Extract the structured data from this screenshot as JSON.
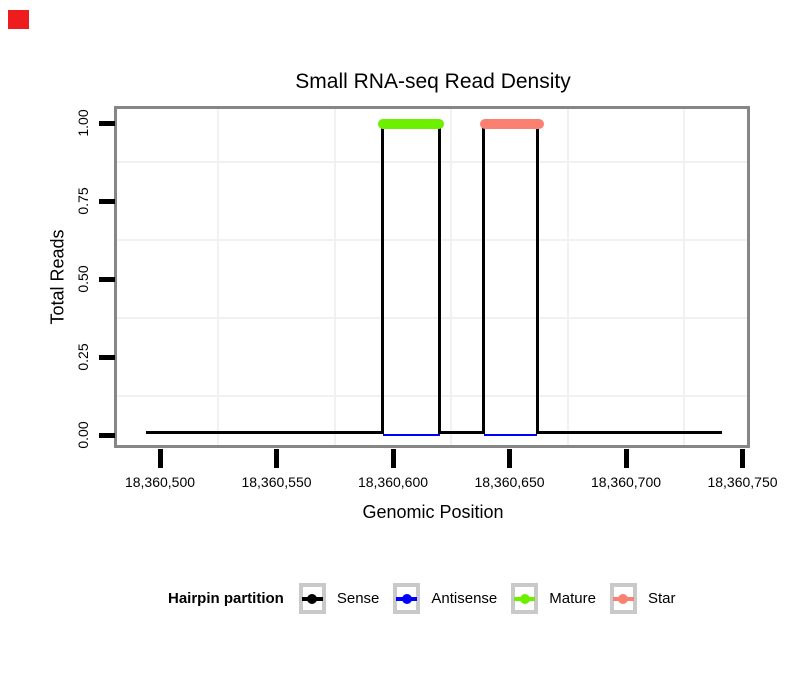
{
  "decorations": {
    "corner_marker_color": "#EE1C1C"
  },
  "chart_data": {
    "type": "step-line-coverage",
    "title": "Small RNA-seq Read Density",
    "xlabel": "Genomic Position",
    "ylabel": "Total Reads",
    "xlim": [
      18360482,
      18360752
    ],
    "ylim": [
      0,
      1.08
    ],
    "grid": {
      "on": true,
      "vertical_at": [
        18360525,
        18360575,
        18360625,
        18360675,
        18360725
      ],
      "horizontal_at": [
        0.125,
        0.375,
        0.625,
        0.875
      ]
    },
    "x_ticks": [
      {
        "value": 18360500,
        "label": "18,360,500"
      },
      {
        "value": 18360550,
        "label": "18,360,550"
      },
      {
        "value": 18360600,
        "label": "18,360,600"
      },
      {
        "value": 18360650,
        "label": "18,360,650"
      },
      {
        "value": 18360700,
        "label": "18,360,700"
      },
      {
        "value": 18360750,
        "label": "18,360,750"
      }
    ],
    "y_ticks": [
      {
        "value": 0.0,
        "label": "0.00"
      },
      {
        "value": 0.25,
        "label": "0.25"
      },
      {
        "value": 0.5,
        "label": "0.50"
      },
      {
        "value": 0.75,
        "label": "0.75"
      },
      {
        "value": 1.0,
        "label": "1.00"
      }
    ],
    "series": {
      "sense": {
        "name": "Sense",
        "color": "#000000",
        "x_start": 18360494,
        "x_end": 18360741,
        "baseline_value": 0,
        "peak_value": 1,
        "peaks": [
          [
            18360595.5,
            18360620
          ],
          [
            18360639,
            18360662
          ]
        ]
      },
      "antisense": {
        "name": "Antisense",
        "color": "#0000FF",
        "value": 0,
        "segments": [
          [
            18360595.5,
            18360620
          ],
          [
            18360639,
            18360662
          ]
        ]
      },
      "mature": {
        "name": "Mature",
        "color": "#6CF000",
        "value": 1,
        "span": [
          18360593.5,
          18360622
        ]
      },
      "star": {
        "name": "Star",
        "color": "#FA8072",
        "value": 1,
        "span": [
          18360637.5,
          18360665
        ]
      }
    },
    "legend": {
      "position": "bottom",
      "title": "Hairpin partition",
      "entries": [
        {
          "label": "Sense",
          "color": "#000000"
        },
        {
          "label": "Antisense",
          "color": "#0000FF"
        },
        {
          "label": "Mature",
          "color": "#6CF000"
        },
        {
          "label": "Star",
          "color": "#FA8072"
        }
      ]
    }
  }
}
